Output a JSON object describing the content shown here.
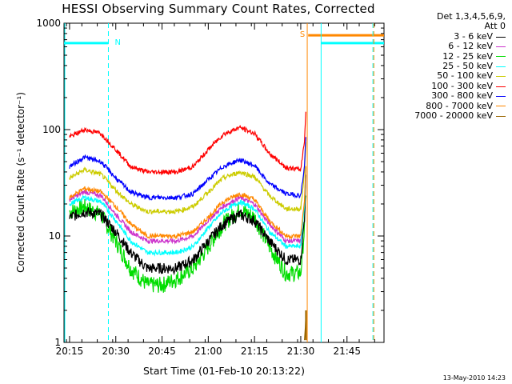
{
  "chart_data": {
    "type": "line",
    "title": "HESSI Observing Summary Count Rates, Corrected",
    "xlabel": "Start Time (01-Feb-10 20:13:22)",
    "ylabel": "Corrected Count Rate (s⁻¹ detector⁻¹)",
    "yscale": "log",
    "ylim": [
      1,
      1000
    ],
    "xlim_minutes_since_2000": [
      20.22,
      21.95
    ],
    "x_ticks": [
      "20:15",
      "20:30",
      "20:45",
      "21:00",
      "21:15",
      "21:30",
      "21:45"
    ],
    "y_ticks": [
      "1",
      "10",
      "100",
      "1000"
    ],
    "legend_header": [
      "Det 1,3,4,5,6,9,",
      "Att 0"
    ],
    "legend_position": "right",
    "x_hours": [
      20.25,
      20.33,
      20.42,
      20.5,
      20.58,
      20.67,
      20.75,
      20.83,
      20.92,
      21.0,
      21.08,
      21.17,
      21.25,
      21.33,
      21.42,
      21.5,
      21.52,
      21.53
    ],
    "series": [
      {
        "name": "3 - 6 keV",
        "color": "#000000",
        "values": [
          15,
          17,
          16,
          11,
          7,
          5,
          5,
          5,
          6,
          9,
          13,
          16,
          14,
          9,
          6,
          6,
          15,
          45
        ]
      },
      {
        "name": "6 - 12 keV",
        "color": "#cc33cc",
        "values": [
          22,
          26,
          24,
          16,
          11,
          9,
          9,
          9,
          10,
          14,
          19,
          23,
          20,
          13,
          9,
          9,
          20,
          55
        ]
      },
      {
        "name": "12 - 25 keV",
        "color": "#00dd00",
        "values": [
          17,
          19,
          16,
          9,
          5,
          3.5,
          3.5,
          4,
          5,
          8,
          13,
          18,
          15,
          8,
          4.5,
          4.5,
          12,
          35
        ]
      },
      {
        "name": "25 - 50 keV",
        "color": "#00ffff",
        "values": [
          20,
          23,
          21,
          14,
          9,
          7,
          7,
          7,
          8,
          12,
          17,
          21,
          18,
          11,
          8,
          8,
          20,
          55
        ]
      },
      {
        "name": "50 - 100 keV",
        "color": "#cccc00",
        "values": [
          35,
          42,
          38,
          27,
          20,
          17,
          17,
          17,
          19,
          26,
          35,
          40,
          36,
          24,
          18,
          18,
          40,
          95
        ]
      },
      {
        "name": "100 - 300 keV",
        "color": "#ff0000",
        "values": [
          85,
          100,
          92,
          65,
          45,
          40,
          40,
          40,
          45,
          65,
          90,
          105,
          92,
          60,
          44,
          42,
          80,
          180
        ]
      },
      {
        "name": "300 - 800 keV",
        "color": "#0000ff",
        "values": [
          45,
          55,
          50,
          35,
          26,
          23,
          23,
          23,
          25,
          34,
          45,
          52,
          46,
          31,
          25,
          24,
          45,
          110
        ]
      },
      {
        "name": "800 - 7000 keV",
        "color": "#ff8800",
        "values": [
          23,
          28,
          26,
          19,
          13,
          10,
          10,
          10,
          11,
          15,
          21,
          25,
          22,
          14,
          10,
          10,
          22,
          58
        ]
      },
      {
        "name": "7000 - 20000 keV",
        "color": "#996600",
        "values": [
          null,
          null,
          null,
          null,
          null,
          null,
          null,
          null,
          null,
          null,
          null,
          null,
          null,
          null,
          null,
          null,
          1,
          2
        ]
      }
    ],
    "annotations": [
      {
        "text": "N",
        "color": "#00ffff",
        "x_hour": 20.46,
        "y": 650
      },
      {
        "text": "S",
        "color": "#ff8800",
        "x_hour": 21.54,
        "y": 770
      }
    ],
    "time_stamp": "13-May-2010 14:23"
  }
}
